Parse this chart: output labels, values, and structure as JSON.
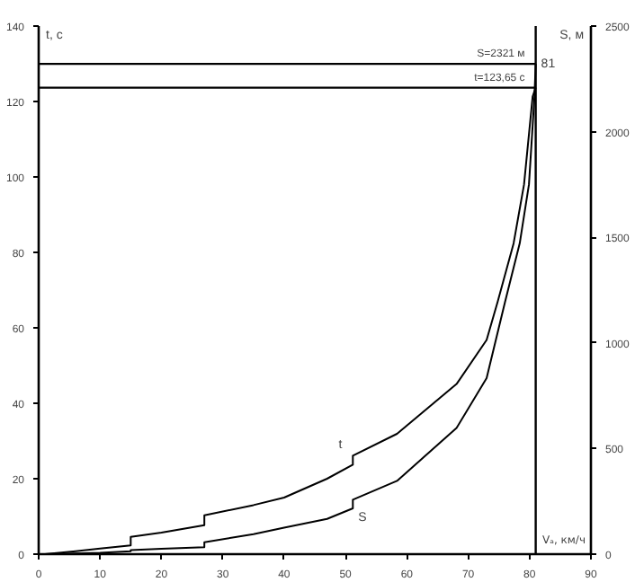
{
  "chart_data": {
    "type": "line",
    "ylabel": "t, c",
    "y2label": "S, м",
    "xlabel": "Vₐ, км/ч",
    "xlim": [
      0,
      90
    ],
    "ylim": [
      0,
      140
    ],
    "y2lim": [
      0,
      2500
    ],
    "xticks": [
      0,
      10,
      20,
      30,
      40,
      50,
      60,
      70,
      80,
      90
    ],
    "yticks": [
      0,
      20,
      40,
      60,
      80,
      100,
      120,
      140
    ],
    "y2ticks": [
      0,
      500,
      1000,
      1500,
      2000,
      2500
    ],
    "grid": false,
    "marker": "none",
    "line_style": "solid",
    "series": [
      {
        "name": "t",
        "color": "#000000",
        "x": [
          1,
          6,
          10,
          15,
          15,
          20,
          27,
          27,
          35,
          40,
          47,
          51.2,
          51.2,
          58.4,
          68.1,
          73,
          74.8,
          77.4,
          79.1,
          80.5,
          81
        ],
        "values": [
          0,
          0.8,
          1.5,
          2.3,
          4.6,
          5.7,
          7.7,
          10.3,
          13,
          15,
          20,
          23.7,
          26.1,
          31.9,
          45.1,
          56.8,
          66.9,
          82.4,
          98,
          121.3,
          123.7
        ]
      },
      {
        "name": "S",
        "color": "#000000",
        "axis": "y2",
        "x": [
          1,
          6,
          10,
          15,
          15,
          20,
          27,
          27,
          35,
          40,
          47,
          51.2,
          51.2,
          58.4,
          68.1,
          73,
          76,
          78.4,
          79.9,
          80.8,
          81
        ],
        "values": [
          0,
          3,
          6,
          14,
          19,
          25,
          33,
          56,
          95,
          125,
          167,
          217,
          258,
          347,
          597,
          833,
          1194,
          1472,
          1750,
          2167,
          2321
        ]
      }
    ],
    "ref_lines": [
      {
        "axis": "y2",
        "value": 2321,
        "label": "S=2321 м"
      },
      {
        "axis": "y",
        "value": 123.65,
        "label": "t=123,65 с"
      },
      {
        "axis": "x",
        "value": 81,
        "label": "81"
      }
    ]
  }
}
